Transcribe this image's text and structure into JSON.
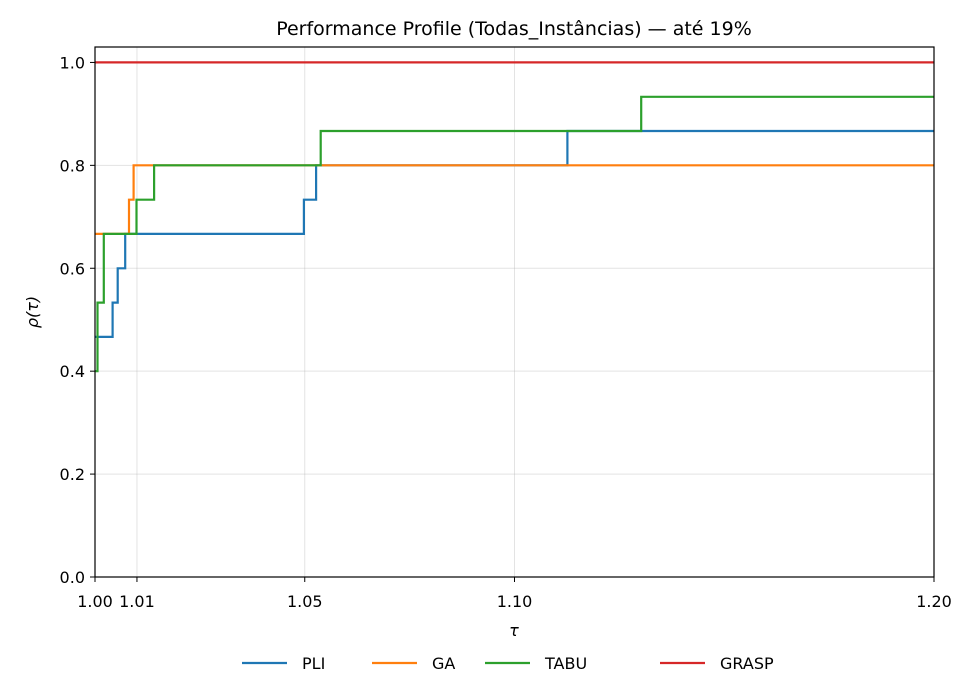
{
  "chart_data": {
    "type": "line",
    "step": true,
    "title": "Performance Profile (Todas_Instâncias) — até 19%",
    "xlabel": "τ",
    "ylabel": "ρ(τ)",
    "xlim": [
      1.0,
      1.2
    ],
    "ylim": [
      0.0,
      1.03
    ],
    "xticks": [
      1.0,
      1.01,
      1.05,
      1.1,
      1.2
    ],
    "xtick_labels": [
      "1.00",
      "1.01",
      "1.05",
      "1.10",
      "1.20"
    ],
    "yticks": [
      0.0,
      0.2,
      0.4,
      0.6,
      0.8,
      1.0
    ],
    "ytick_labels": [
      "0.0",
      "0.2",
      "0.4",
      "0.6",
      "0.8",
      "1.0"
    ],
    "grid": true,
    "legend_position": "bottom-center",
    "series": [
      {
        "name": "PLI",
        "color": "#1f77b4",
        "x": [
          1.0,
          1.0008,
          1.0042,
          1.0054,
          1.0072,
          1.0498,
          1.0527,
          1.1126,
          1.2
        ],
        "y": [
          0.4667,
          0.4667,
          0.5333,
          0.6,
          0.6667,
          0.7333,
          0.8,
          0.8667,
          0.8667
        ]
      },
      {
        "name": "GA",
        "color": "#ff7f0e",
        "x": [
          1.0,
          1.0081,
          1.0092,
          1.2
        ],
        "y": [
          0.6667,
          0.7333,
          0.8,
          0.8
        ]
      },
      {
        "name": "TABU",
        "color": "#2ca02c",
        "x": [
          1.0,
          1.0006,
          1.0021,
          1.0099,
          1.0141,
          1.0538,
          1.1302,
          1.2
        ],
        "y": [
          0.4,
          0.5333,
          0.6667,
          0.7333,
          0.8,
          0.8667,
          0.9333,
          0.9333
        ]
      },
      {
        "name": "GRASP",
        "color": "#d62728",
        "x": [
          1.0,
          1.2
        ],
        "y": [
          1.0,
          1.0
        ]
      }
    ]
  }
}
